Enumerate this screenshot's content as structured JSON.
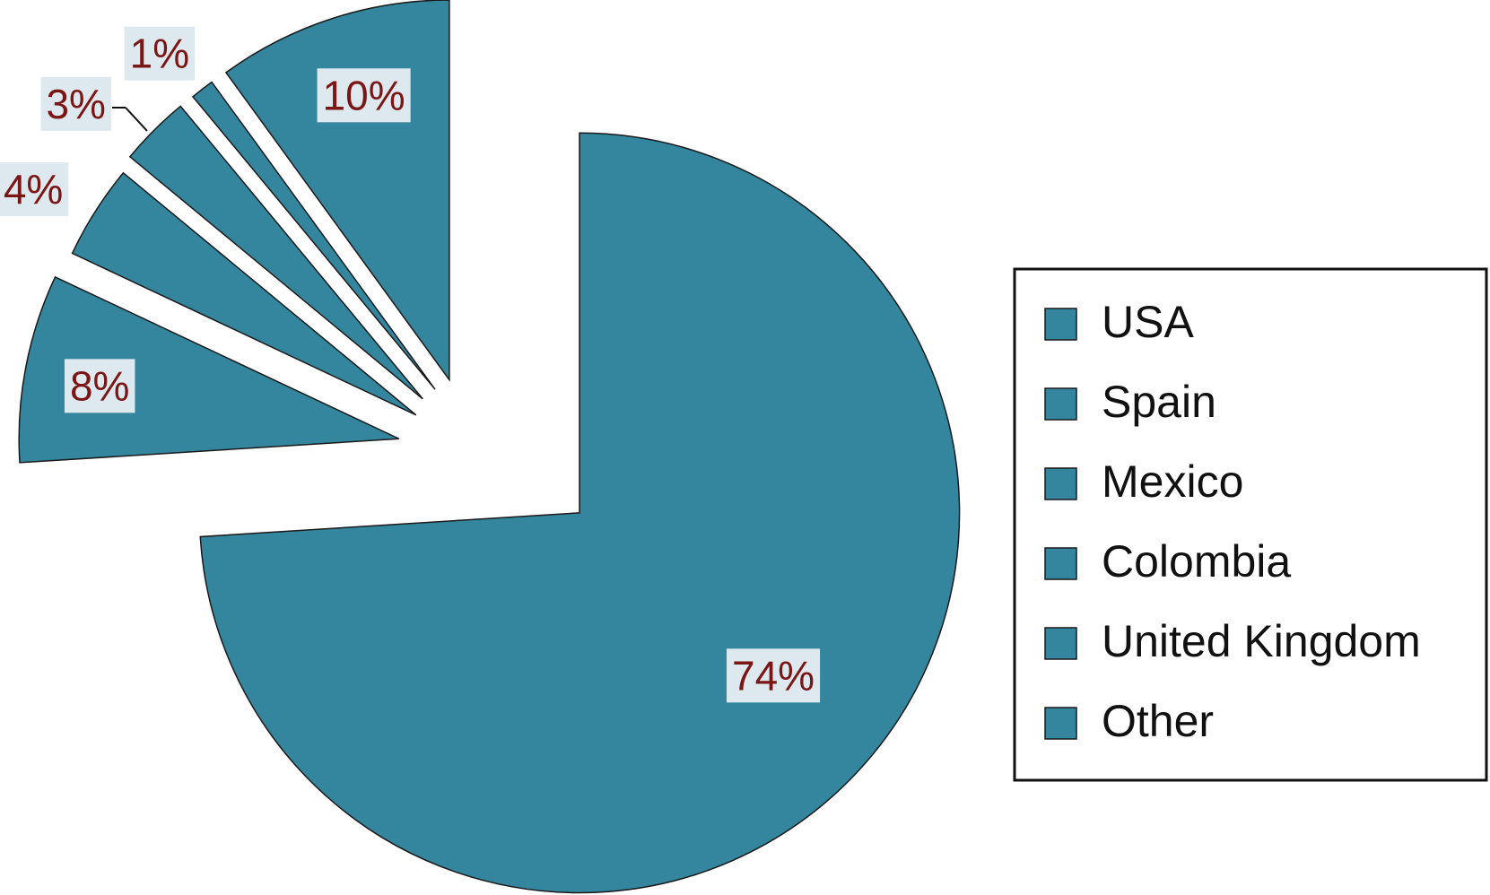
{
  "chart_data": {
    "type": "pie",
    "categories": [
      "USA",
      "Spain",
      "Mexico",
      "Colombia",
      "United Kingdom",
      "Other"
    ],
    "values": [
      74,
      8,
      4,
      3,
      1,
      10
    ],
    "value_labels": [
      "74%",
      "8%",
      "4%",
      "3%",
      "1%",
      "10%"
    ],
    "color": "#34869e",
    "legend": "right"
  }
}
